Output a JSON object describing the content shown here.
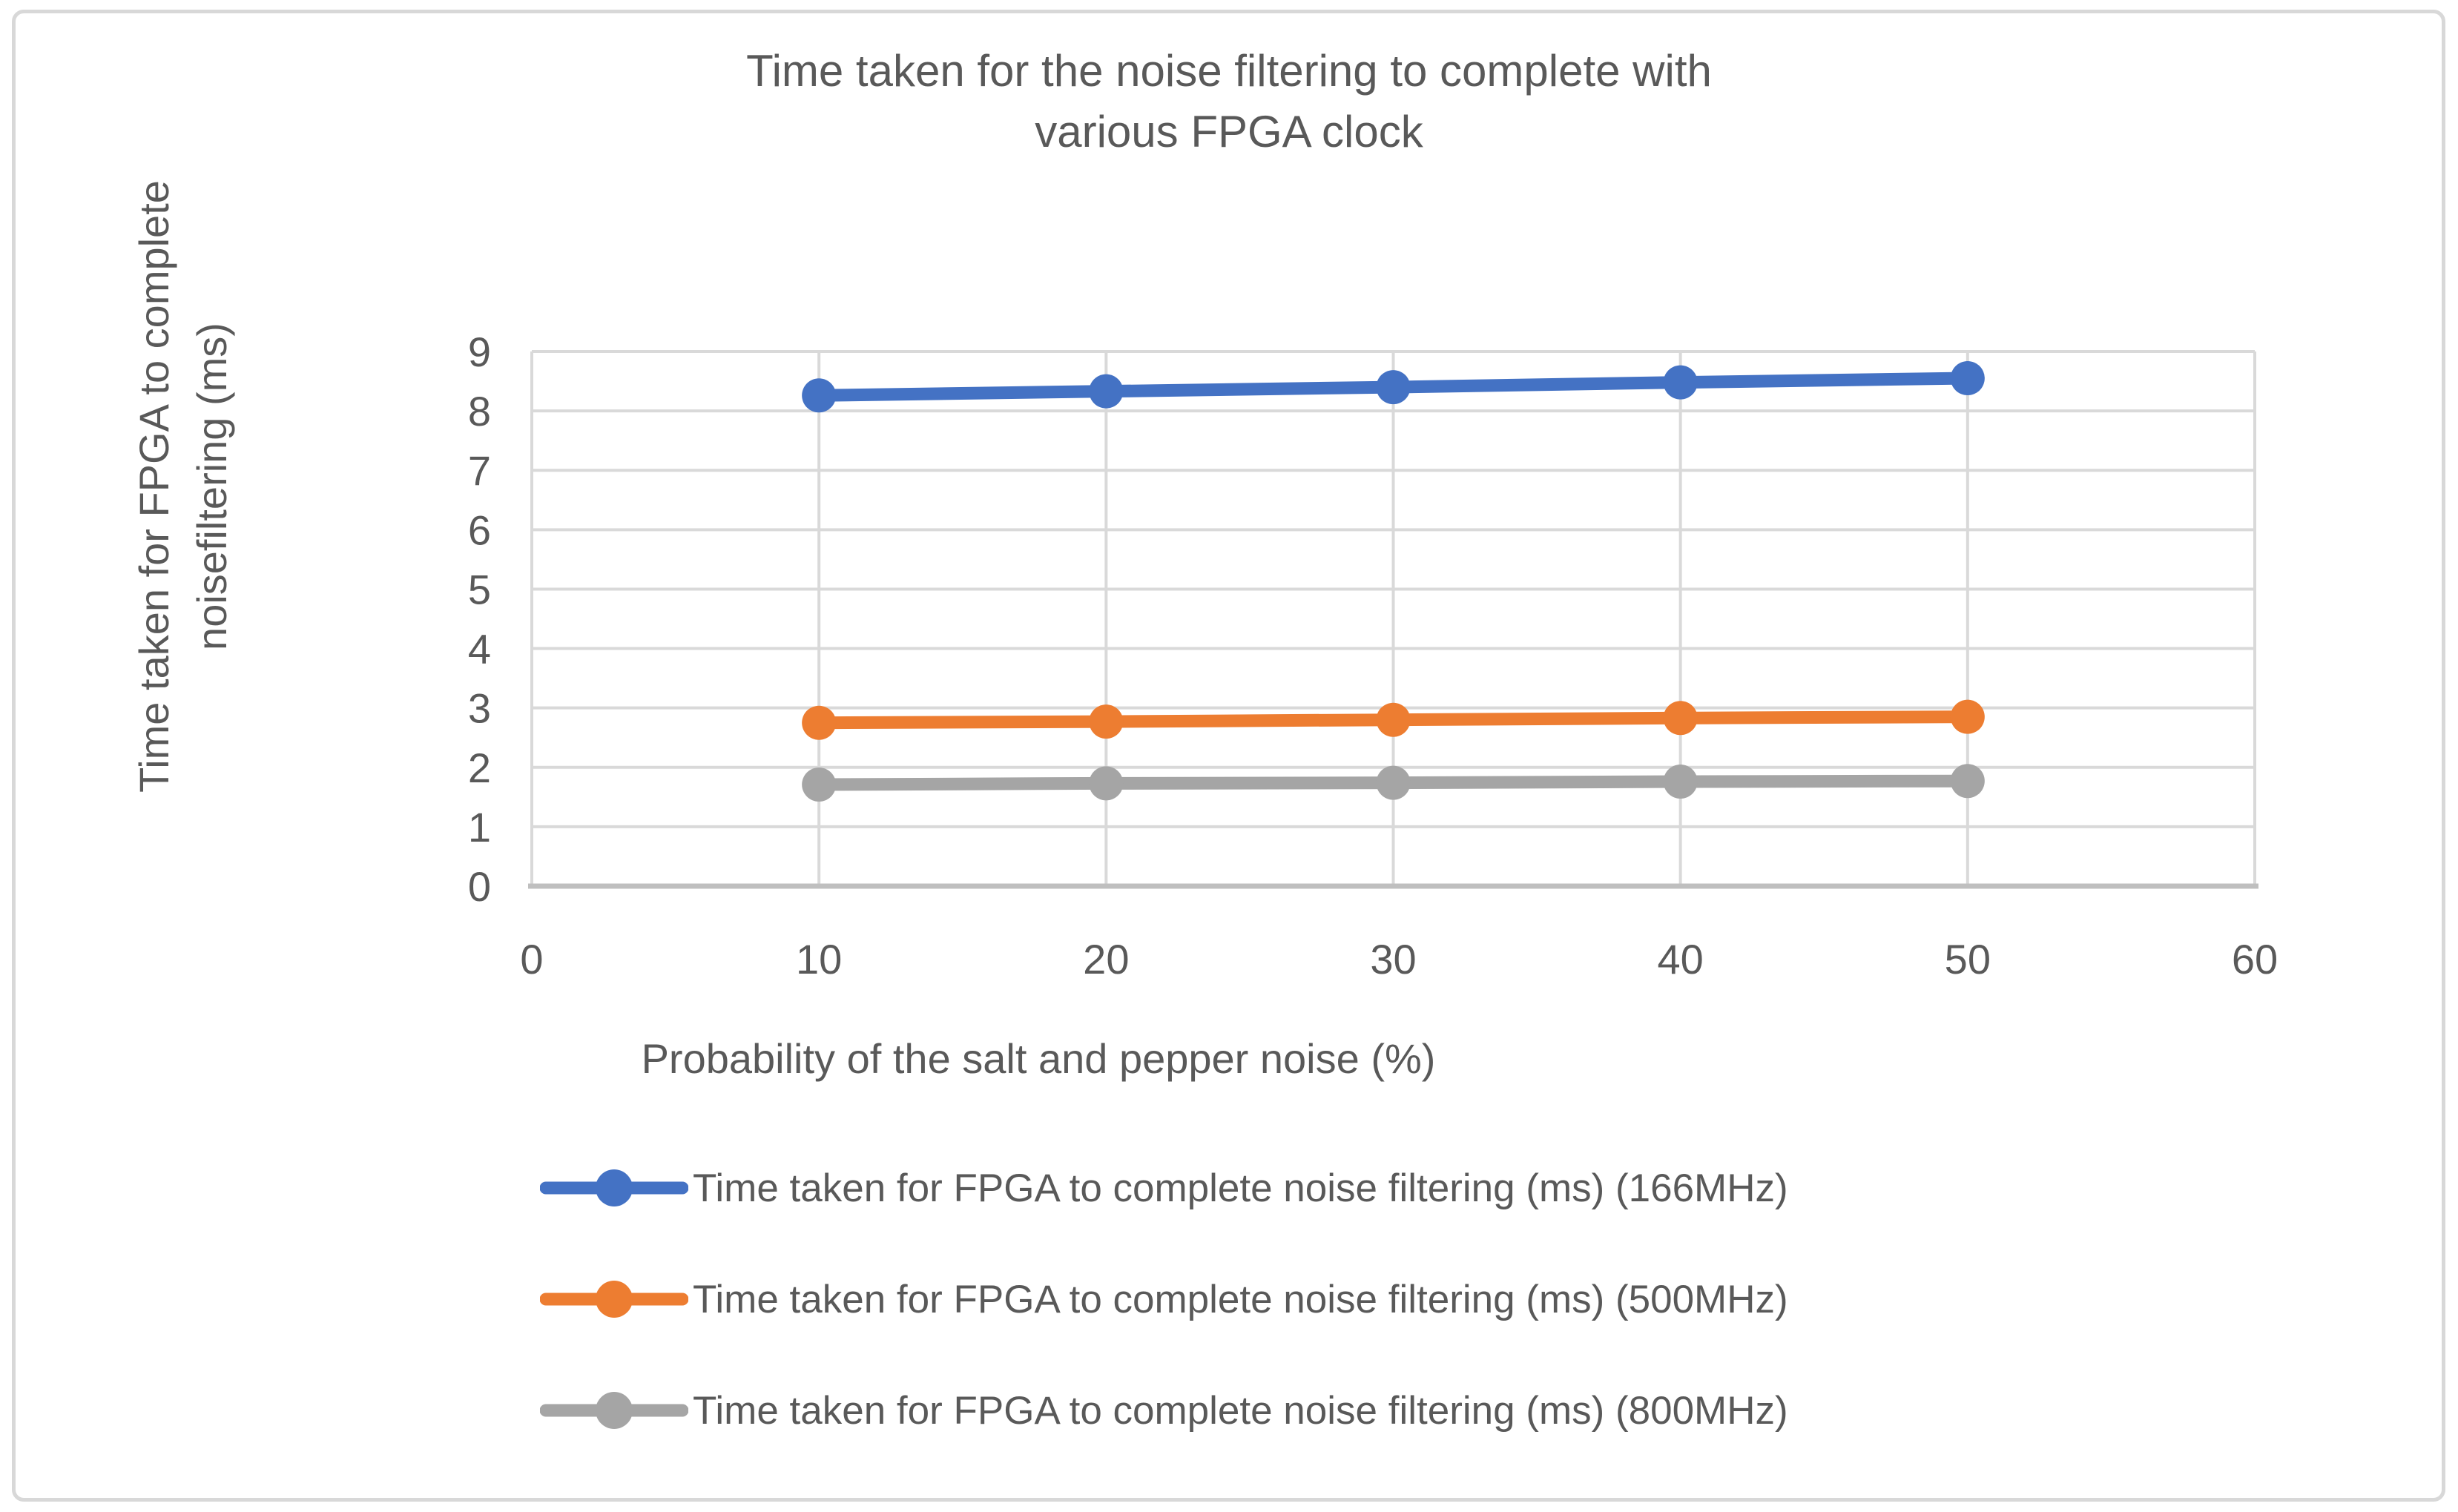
{
  "chart_data": {
    "type": "line",
    "title": "Time taken for the noise filtering to complete with\nvarious FPGA clock",
    "xlabel": "Probability of the salt and pepper noise (%)",
    "ylabel": "Time taken for FPGA to complete\nnoisefiltering (ms)",
    "x": [
      10,
      20,
      30,
      40,
      50
    ],
    "x_ticks": [
      0,
      10,
      20,
      30,
      40,
      50,
      60
    ],
    "y_ticks": [
      0,
      1,
      2,
      3,
      4,
      5,
      6,
      7,
      8,
      9
    ],
    "xlim": [
      0,
      60
    ],
    "ylim": [
      0,
      9
    ],
    "grid": true,
    "legend_position": "bottom-left",
    "series": [
      {
        "name": "Time taken for FPGA to complete noise filtering (ms) (166MHz)",
        "color": "#4472C4",
        "values": [
          8.26,
          8.33,
          8.4,
          8.48,
          8.55
        ]
      },
      {
        "name": "Time taken for FPGA to complete noise filtering (ms) (500MHz)",
        "color": "#ED7D31",
        "values": [
          2.75,
          2.77,
          2.8,
          2.83,
          2.85
        ]
      },
      {
        "name": "Time taken for FPGA to complete noise filtering (ms) (800MHz)",
        "color": "#A5A5A5",
        "values": [
          1.71,
          1.73,
          1.74,
          1.76,
          1.77
        ]
      }
    ]
  },
  "colors": {
    "text": "#595959",
    "gridline": "#D9D9D9",
    "axis_line": "#BFBFBF",
    "border": "#D8D8D8",
    "background": "#FFFFFF"
  }
}
